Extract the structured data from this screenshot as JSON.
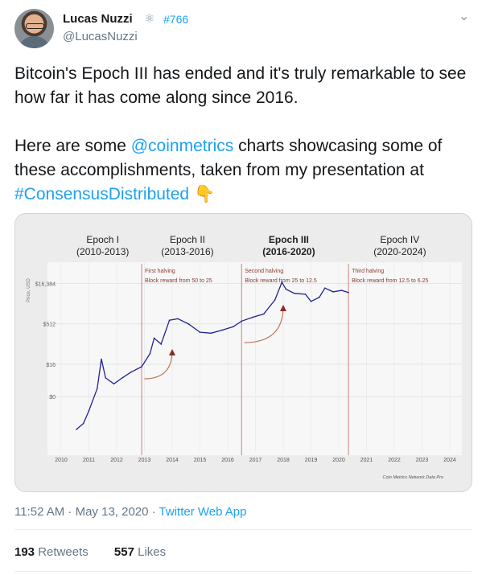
{
  "author": {
    "name": "Lucas Nuzzi",
    "handle": "@LucasNuzzi",
    "tag": "#766",
    "badge_icon": "atom-icon"
  },
  "tweet": {
    "line1": "Bitcoin's Epoch III has ended and it's truly remarkable to see how far it has come along since 2016.",
    "line2_pre": "Here are some ",
    "mention": "@coinmetrics",
    "line2_mid": " charts showcasing some of these accomplishments, taken from my presentation at ",
    "hashtag": "#ConsensusDistributed",
    "emoji": "👇"
  },
  "meta": {
    "time": "11:52 AM · May 13, 2020 · ",
    "app": "Twitter Web App"
  },
  "stats": {
    "retweets_count": "193",
    "retweets_label": "Retweets",
    "likes_count": "557",
    "likes_label": "Likes"
  },
  "chart_data": {
    "type": "line",
    "ylabel": "Price, USD",
    "yticks": [
      "$16,384",
      "$512",
      "$16",
      "$0"
    ],
    "x_ticks": [
      "2010",
      "2011",
      "2012",
      "2013",
      "2014",
      "2015",
      "2016",
      "2017",
      "2018",
      "2019",
      "2020",
      "2021",
      "2022",
      "2023",
      "2024"
    ],
    "epochs": [
      {
        "title": "Epoch I",
        "range": "(2010-2013)"
      },
      {
        "title": "Epoch II",
        "range": "(2013-2016)"
      },
      {
        "title": "Epoch III",
        "range": "(2016-2020)"
      },
      {
        "title": "Epoch IV",
        "range": "(2020-2024)"
      }
    ],
    "halvings": [
      {
        "year": 2012.9,
        "line1": "First halving",
        "line2": "Block reward from 50 to 25"
      },
      {
        "year": 2016.5,
        "line1": "Second halving",
        "line2": "Block reward from 25 to 12.5"
      },
      {
        "year": 2020.35,
        "line1": "Third halving",
        "line2": "Block reward from 12.5 to 6.25"
      }
    ],
    "series": [
      {
        "x": [
          2010.55,
          2010.8,
          2011.0,
          2011.3,
          2011.45,
          2011.6,
          2011.9,
          2012.2,
          2012.5,
          2012.9,
          2013.2,
          2013.35,
          2013.6,
          2013.9,
          2014.2,
          2014.6,
          2015.0,
          2015.4,
          2015.8,
          2016.2,
          2016.5,
          2016.9,
          2017.3,
          2017.7,
          2017.95,
          2018.1,
          2018.4,
          2018.8,
          2019.0,
          2019.3,
          2019.5,
          2019.8,
          2020.1,
          2020.35
        ],
        "y": [
          0.06,
          0.1,
          0.3,
          2,
          25,
          5,
          3,
          5,
          8,
          13,
          40,
          150,
          90,
          700,
          800,
          500,
          250,
          230,
          300,
          400,
          650,
          900,
          1200,
          4000,
          18000,
          10000,
          7000,
          6500,
          3500,
          5000,
          11000,
          8000,
          9000,
          7500
        ]
      }
    ],
    "source": "Coin Metrics Network Data Pro",
    "line_color": "#23238f"
  }
}
